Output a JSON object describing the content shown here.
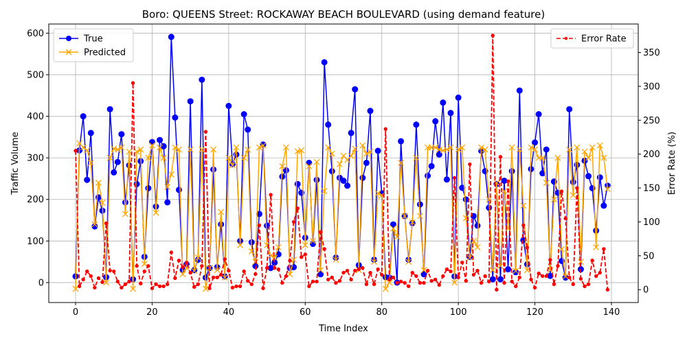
{
  "chart_data": {
    "type": "line",
    "title": "Boro: QUEENS Street: ROCKAWAY BEACH BOULEVARD (using demand feature)",
    "xlabel": "Time Index",
    "ylabel": "Traffic Volume",
    "y2label": "Error Rate (%)",
    "xlim": [
      -7,
      147
    ],
    "ylim": [
      -48,
      622
    ],
    "y2lim": [
      -19,
      392
    ],
    "xticks": [
      0,
      20,
      40,
      60,
      80,
      100,
      120,
      140
    ],
    "yticks": [
      0,
      100,
      200,
      300,
      400,
      500,
      600
    ],
    "y2ticks": [
      0,
      50,
      100,
      150,
      200,
      250,
      300,
      350
    ],
    "grid": true,
    "legend_left_position": "upper-left",
    "legend_right_position": "upper-right",
    "x": [
      0,
      1,
      2,
      3,
      4,
      5,
      6,
      7,
      8,
      9,
      10,
      11,
      12,
      13,
      14,
      15,
      16,
      17,
      18,
      19,
      20,
      21,
      22,
      23,
      24,
      25,
      26,
      27,
      28,
      29,
      30,
      31,
      32,
      33,
      34,
      35,
      36,
      37,
      38,
      39,
      40,
      41,
      42,
      43,
      44,
      45,
      46,
      47,
      48,
      49,
      50,
      51,
      52,
      53,
      54,
      55,
      56,
      57,
      58,
      59,
      60,
      61,
      62,
      63,
      64,
      65,
      66,
      67,
      68,
      69,
      70,
      71,
      72,
      73,
      74,
      75,
      76,
      77,
      78,
      79,
      80,
      81,
      82,
      83,
      84,
      85,
      86,
      87,
      88,
      89,
      90,
      91,
      92,
      93,
      94,
      95,
      96,
      97,
      98,
      99,
      100,
      101,
      102,
      103,
      104,
      105,
      106,
      107,
      108,
      109,
      110,
      111,
      112,
      113,
      114,
      115,
      116,
      117,
      118,
      119,
      120,
      121,
      122,
      123,
      124,
      125,
      126,
      127,
      128,
      129,
      130,
      131,
      132,
      133,
      134,
      135,
      136,
      137,
      138,
      139
    ],
    "series": [
      {
        "name": "True",
        "axis": "left",
        "color": "#0000ff",
        "marker": "circle",
        "linestyle": "solid",
        "values": [
          15,
          318,
          400,
          247,
          360,
          135,
          205,
          173,
          13,
          417,
          265,
          290,
          357,
          193,
          282,
          8,
          237,
          292,
          62,
          227,
          338,
          183,
          343,
          328,
          193,
          591,
          397,
          223,
          30,
          44,
          436,
          30,
          55,
          488,
          12,
          35,
          272,
          37,
          140,
          15,
          425,
          285,
          308,
          100,
          405,
          368,
          97,
          40,
          165,
          332,
          137,
          35,
          48,
          68,
          255,
          270,
          35,
          37,
          237,
          216,
          108,
          288,
          93,
          247,
          20,
          530,
          380,
          268,
          60,
          252,
          245,
          233,
          360,
          465,
          42,
          252,
          288,
          413,
          55,
          317,
          215,
          13,
          12,
          140,
          0,
          340,
          160,
          55,
          143,
          380,
          188,
          20,
          257,
          280,
          388,
          308,
          433,
          248,
          408,
          15,
          445,
          228,
          200,
          62,
          160,
          137,
          317,
          268,
          180,
          8,
          237,
          8,
          245,
          32,
          268,
          25,
          462,
          102,
          44,
          273,
          337,
          405,
          263,
          320,
          16,
          243,
          216,
          52,
          12,
          417,
          242,
          283,
          32,
          293,
          256,
          227,
          125,
          253,
          185,
          233
        ]
      },
      {
        "name": "Predicted",
        "axis": "left",
        "color": "#ffa500",
        "marker": "x",
        "linestyle": "solid",
        "values": [
          -15,
          335,
          325,
          318,
          288,
          140,
          240,
          192,
          0,
          300,
          322,
          320,
          325,
          165,
          315,
          -15,
          315,
          320,
          45,
          300,
          330,
          168,
          325,
          300,
          230,
          260,
          325,
          320,
          20,
          35,
          320,
          28,
          60,
          320,
          -15,
          35,
          320,
          30,
          170,
          12,
          300,
          282,
          325,
          90,
          300,
          320,
          75,
          50,
          325,
          330,
          90,
          65,
          60,
          85,
          280,
          325,
          20,
          55,
          316,
          318,
          90,
          280,
          100,
          290,
          30,
          220,
          325,
          310,
          55,
          285,
          305,
          295,
          305,
          322,
          30,
          330,
          310,
          315,
          50,
          215,
          210,
          -15,
          0,
          130,
          110,
          288,
          160,
          50,
          145,
          300,
          160,
          30,
          325,
          325,
          325,
          320,
          318,
          320,
          325,
          0,
          320,
          325,
          155,
          60,
          100,
          85,
          325,
          320,
          200,
          30,
          240,
          40,
          220,
          130,
          325,
          28,
          320,
          185,
          30,
          325,
          320,
          300,
          300,
          240,
          30,
          200,
          300,
          80,
          15,
          320,
          210,
          325,
          50,
          315,
          300,
          325,
          85,
          330,
          300,
          225
        ]
      },
      {
        "name": "Error Rate",
        "axis": "right",
        "color": "#ff0000",
        "marker": "dot",
        "linestyle": "dashed",
        "values": [
          205,
          5,
          15,
          27,
          20,
          3,
          17,
          11,
          98,
          28,
          27,
          12,
          3,
          8,
          12,
          305,
          35,
          9,
          27,
          35,
          2,
          8,
          5,
          5,
          8,
          55,
          17,
          43,
          33,
          40,
          25,
          4,
          8,
          35,
          233,
          2,
          18,
          18,
          22,
          45,
          28,
          3,
          5,
          5,
          27,
          13,
          8,
          23,
          95,
          2,
          32,
          140,
          32,
          30,
          10,
          20,
          43,
          100,
          120,
          48,
          52,
          5,
          12,
          12,
          85,
          60,
          15,
          18,
          10,
          13,
          25,
          28,
          15,
          28,
          30,
          32,
          8,
          25,
          8,
          30,
          22,
          237,
          15,
          18,
          10,
          12,
          10,
          5,
          25,
          20,
          10,
          10,
          28,
          13,
          15,
          7,
          20,
          30,
          27,
          165,
          18,
          40,
          13,
          185,
          22,
          28,
          10,
          20,
          12,
          375,
          0,
          196,
          10,
          160,
          12,
          5,
          18,
          95,
          62,
          15,
          3,
          24,
          20,
          20,
          44,
          8,
          35,
          145,
          105,
          18,
          8,
          150,
          16,
          5,
          8,
          43,
          20,
          25,
          60,
          0
        ]
      }
    ]
  }
}
